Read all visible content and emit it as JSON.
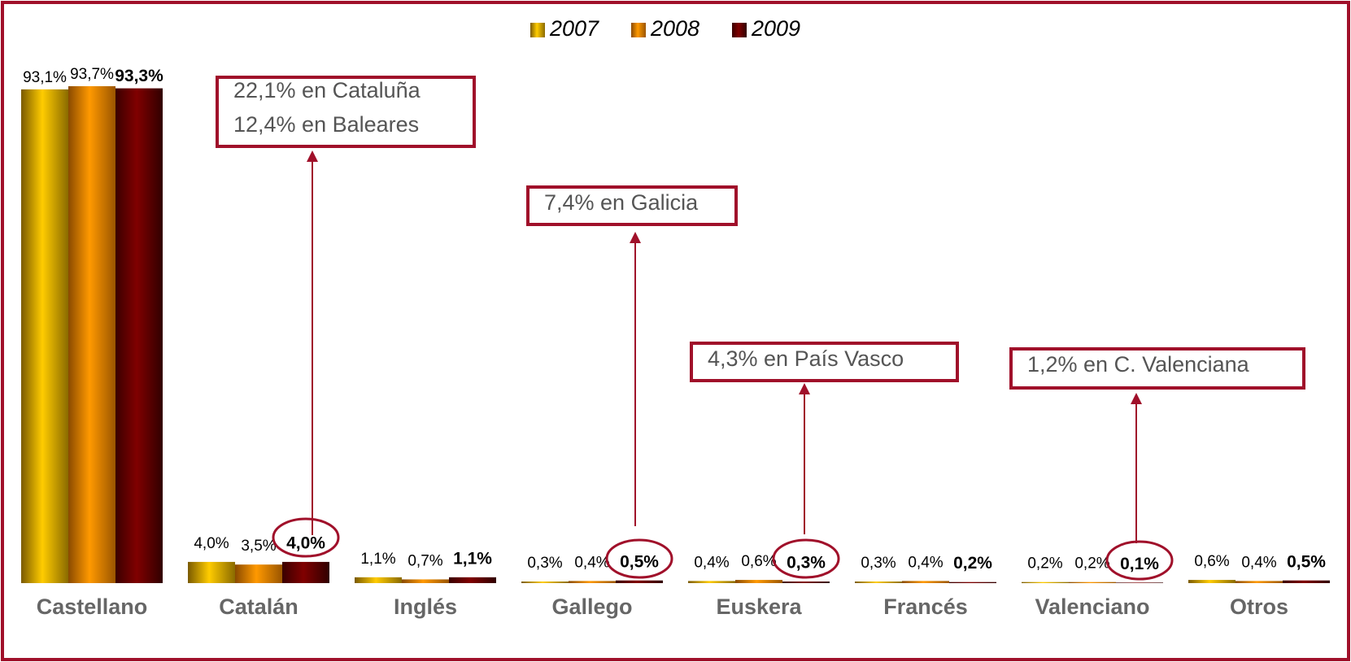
{
  "chart_data": {
    "type": "bar",
    "categories": [
      "Castellano",
      "Catalán",
      "Inglés",
      "Gallego",
      "Euskera",
      "Francés",
      "Valenciano",
      "Otros"
    ],
    "series": [
      {
        "name": "2007",
        "color": "#ffcc00",
        "values": [
          93.1,
          4.0,
          1.1,
          0.3,
          0.4,
          0.3,
          0.2,
          0.6
        ],
        "value_labels": [
          "93,1%",
          "4,0%",
          "1,1%",
          "0,3%",
          "0,4%",
          "0,3%",
          "0,2%",
          "0,6%"
        ]
      },
      {
        "name": "2008",
        "color": "#ff9900",
        "values": [
          93.7,
          3.5,
          0.7,
          0.4,
          0.6,
          0.4,
          0.2,
          0.4
        ],
        "value_labels": [
          "93,7%",
          "3,5%",
          "0,7%",
          "0,4%",
          "0,6%",
          "0,4%",
          "0,2%",
          "0,4%"
        ]
      },
      {
        "name": "2009",
        "color": "#800000",
        "values": [
          93.3,
          4.0,
          1.1,
          0.5,
          0.3,
          0.2,
          0.1,
          0.5
        ],
        "value_labels": [
          "93,3%",
          "4,0%",
          "1,1%",
          "0,5%",
          "0,3%",
          "0,2%",
          "0,1%",
          "0,5%"
        ]
      }
    ],
    "annotations": [
      {
        "lines": [
          "22,1% en Cataluña",
          "12,4% en Baleares"
        ]
      },
      {
        "lines": [
          "7,4% en Galicia"
        ]
      },
      {
        "lines": [
          "4,3% en País Vasco"
        ]
      },
      {
        "lines": [
          "1,2% en C. Valenciana"
        ]
      }
    ],
    "legend": "top"
  }
}
